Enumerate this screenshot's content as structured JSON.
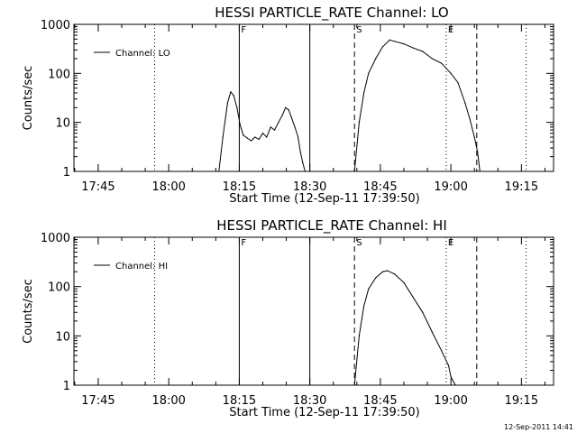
{
  "chart_data": [
    {
      "type": "line",
      "title": "HESSI PARTICLE_RATE Channel: LO",
      "xlabel": "Start Time (12-Sep-11 17:39:50)",
      "ylabel": "Counts/sec",
      "y_scale": "log",
      "ylim": [
        1,
        1000
      ],
      "xlim": [
        "17:39:50",
        "19:21:50"
      ],
      "x_ticks": [
        "17:45",
        "18:00",
        "18:15",
        "18:30",
        "18:45",
        "19:00",
        "19:15"
      ],
      "y_ticks": [
        "1",
        "10",
        "100",
        "1000"
      ],
      "legend": {
        "placement": "top-left",
        "entries": [
          "Channel: LO"
        ]
      },
      "markers": [
        {
          "time": "17:57:00",
          "style": "dotted",
          "label": ""
        },
        {
          "time": "18:15:00",
          "style": "solid",
          "label": "F"
        },
        {
          "time": "18:30:00",
          "style": "solid",
          "label": ""
        },
        {
          "time": "18:39:30",
          "style": "dashed",
          "label": "S"
        },
        {
          "time": "18:59:00",
          "style": "dotted",
          "label": "E"
        },
        {
          "time": "19:05:30",
          "style": "dashed",
          "label": ""
        },
        {
          "time": "19:16:00",
          "style": "dotted",
          "label": ""
        }
      ],
      "series": [
        {
          "name": "Channel: LO",
          "x": [
            "18:10:40",
            "18:11:30",
            "18:12:30",
            "18:13:10",
            "18:13:50",
            "18:14:30",
            "18:15:10",
            "18:15:50",
            "18:16:40",
            "18:17:30",
            "18:18:20",
            "18:19:10",
            "18:20:00",
            "18:20:50",
            "18:21:40",
            "18:22:30",
            "18:23:20",
            "18:24:10",
            "18:24:50",
            "18:25:30",
            "18:26:10",
            "18:26:50",
            "18:27:30",
            "18:28:00",
            "18:28:30",
            "18:29:00",
            "18:39:30",
            "18:40:30",
            "18:41:30",
            "18:42:30",
            "18:44:00",
            "18:45:30",
            "18:47:00",
            "18:48:00",
            "18:50:00",
            "18:52:00",
            "18:54:00",
            "18:56:00",
            "18:58:00",
            "19:00:00",
            "19:01:30",
            "19:03:00",
            "19:04:00",
            "19:05:00",
            "19:05:40",
            "19:06:10"
          ],
          "y": [
            1,
            5,
            25,
            42,
            35,
            20,
            9,
            5.5,
            4.8,
            4.2,
            5,
            4.5,
            6,
            5,
            8,
            7,
            10,
            14,
            20,
            18,
            12,
            8,
            5,
            2.5,
            1.5,
            1,
            1,
            10,
            40,
            100,
            200,
            350,
            480,
            450,
            400,
            330,
            280,
            200,
            160,
            100,
            65,
            25,
            12,
            5,
            2.5,
            1
          ]
        }
      ]
    },
    {
      "type": "line",
      "title": "HESSI PARTICLE_RATE Channel: HI",
      "xlabel": "Start Time (12-Sep-11 17:39:50)",
      "ylabel": "Counts/sec",
      "y_scale": "log",
      "ylim": [
        1,
        1000
      ],
      "xlim": [
        "17:39:50",
        "19:21:50"
      ],
      "x_ticks": [
        "17:45",
        "18:00",
        "18:15",
        "18:30",
        "18:45",
        "19:00",
        "19:15"
      ],
      "y_ticks": [
        "1",
        "10",
        "100",
        "1000"
      ],
      "legend": {
        "placement": "top-left",
        "entries": [
          "Channel: HI"
        ]
      },
      "markers": [
        {
          "time": "17:57:00",
          "style": "dotted",
          "label": ""
        },
        {
          "time": "18:15:00",
          "style": "solid",
          "label": "F"
        },
        {
          "time": "18:30:00",
          "style": "solid",
          "label": ""
        },
        {
          "time": "18:39:30",
          "style": "dashed",
          "label": "S"
        },
        {
          "time": "18:59:00",
          "style": "dotted",
          "label": "E"
        },
        {
          "time": "19:05:30",
          "style": "dashed",
          "label": ""
        },
        {
          "time": "19:16:00",
          "style": "dotted",
          "label": ""
        }
      ],
      "series": [
        {
          "name": "Channel: HI",
          "x": [
            "18:39:30",
            "18:40:30",
            "18:41:30",
            "18:42:30",
            "18:44:00",
            "18:45:30",
            "18:46:30",
            "18:48:00",
            "18:50:00",
            "18:52:00",
            "18:54:00",
            "18:56:00",
            "18:58:00",
            "18:59:30",
            "19:00:00",
            "19:00:30",
            "19:01:00"
          ],
          "y": [
            1,
            10,
            40,
            90,
            150,
            200,
            210,
            180,
            120,
            60,
            30,
            12,
            5,
            2.5,
            1.5,
            1.2,
            1
          ]
        }
      ]
    }
  ],
  "timestamp": "12-Sep-2011 14:41"
}
